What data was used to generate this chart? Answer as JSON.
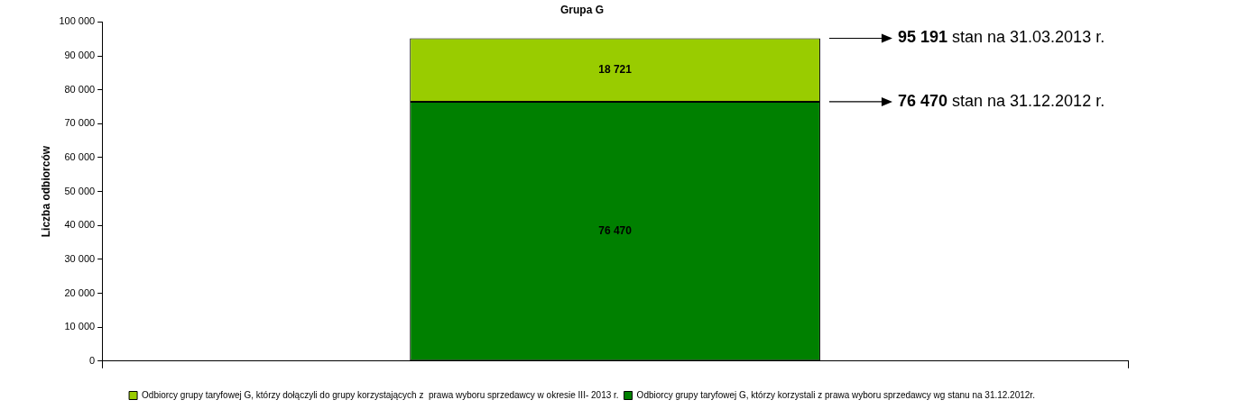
{
  "chart_data": {
    "type": "bar",
    "title": "Grupa G",
    "ylabel": "Liczba odbiorców",
    "categories": [
      null
    ],
    "stacked": true,
    "series": [
      {
        "name": "Odbiorcy grupy taryfowej G, którzy korzystali z prawa wyboru sprzedawcy wg stanu na 31.12.2012r.",
        "color": "#008000",
        "values": [
          76470
        ],
        "value_labels": [
          "76 470"
        ]
      },
      {
        "name": "Odbiorcy grupy taryfowej G, którzy dołączyli do grupy korzystających z  prawa wyboru sprzedawcy w okresie III- 2013 r.",
        "color": "#99cc00",
        "values": [
          18721
        ],
        "value_labels": [
          "18 721"
        ]
      }
    ],
    "ylim": [
      0,
      100000
    ],
    "yticks": [
      {
        "value": 0,
        "label": "0"
      },
      {
        "value": 10000,
        "label": "10 000"
      },
      {
        "value": 20000,
        "label": "20 000"
      },
      {
        "value": 30000,
        "label": "30 000"
      },
      {
        "value": 40000,
        "label": "40 000"
      },
      {
        "value": 50000,
        "label": "50 000"
      },
      {
        "value": 60000,
        "label": "60 000"
      },
      {
        "value": 70000,
        "label": "70 000"
      },
      {
        "value": 80000,
        "label": "80 000"
      },
      {
        "value": 90000,
        "label": "90 000"
      },
      {
        "value": 100000,
        "label": "100 000"
      }
    ],
    "grid": false,
    "legend": "bottom",
    "annotations": [
      "95 191 stan na 31.03.2013 r.",
      "76 470 stan na 31.12.2012 r."
    ]
  }
}
